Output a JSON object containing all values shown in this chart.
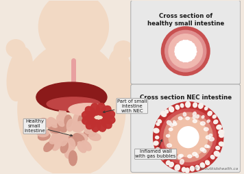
{
  "bg_color": "#f2e8de",
  "title1": "Cross section of\nhealthy small intestine",
  "title2": "Cross section NEC intestine",
  "label_healthy": "Healthy\nsmall\nintestine",
  "label_nec_part": "Part of small\nintestine\nwith NEC",
  "label_inflamed": "Inflamed wall\nwith gas bubbles",
  "copyright": "© Aboutkidshealth.ca",
  "color_skin": "#f2d9c4",
  "color_skin_dark": "#e8c8b0",
  "color_liver_dark": "#8b1a1a",
  "color_liver_light": "#c04444",
  "color_stomach": "#f0bfb0",
  "color_intestine": "#e8b8a8",
  "color_intestine_dark": "#d09080",
  "color_nec_intestine": "#c03030",
  "color_esoph": "#e8a0a0",
  "color_box_bg": "#e8e8e8",
  "color_box_border": "#b0b0b0",
  "color_h_outer": "#c85050",
  "color_h_mid": "#e09090",
  "color_h_inner": "#f0b8b0",
  "color_h_lumen": "#ffffff",
  "color_nec_outer": "#c03030",
  "color_nec_wall": "#d05050",
  "color_nec_inner": "#e8a080",
  "color_nec_lumen": "#f5d0c0",
  "color_bubble": "#f8f0ec",
  "color_arrow": "#333333",
  "color_text": "#1a1a1a",
  "color_label_bg": "#efefef",
  "color_label_border": "#999999"
}
